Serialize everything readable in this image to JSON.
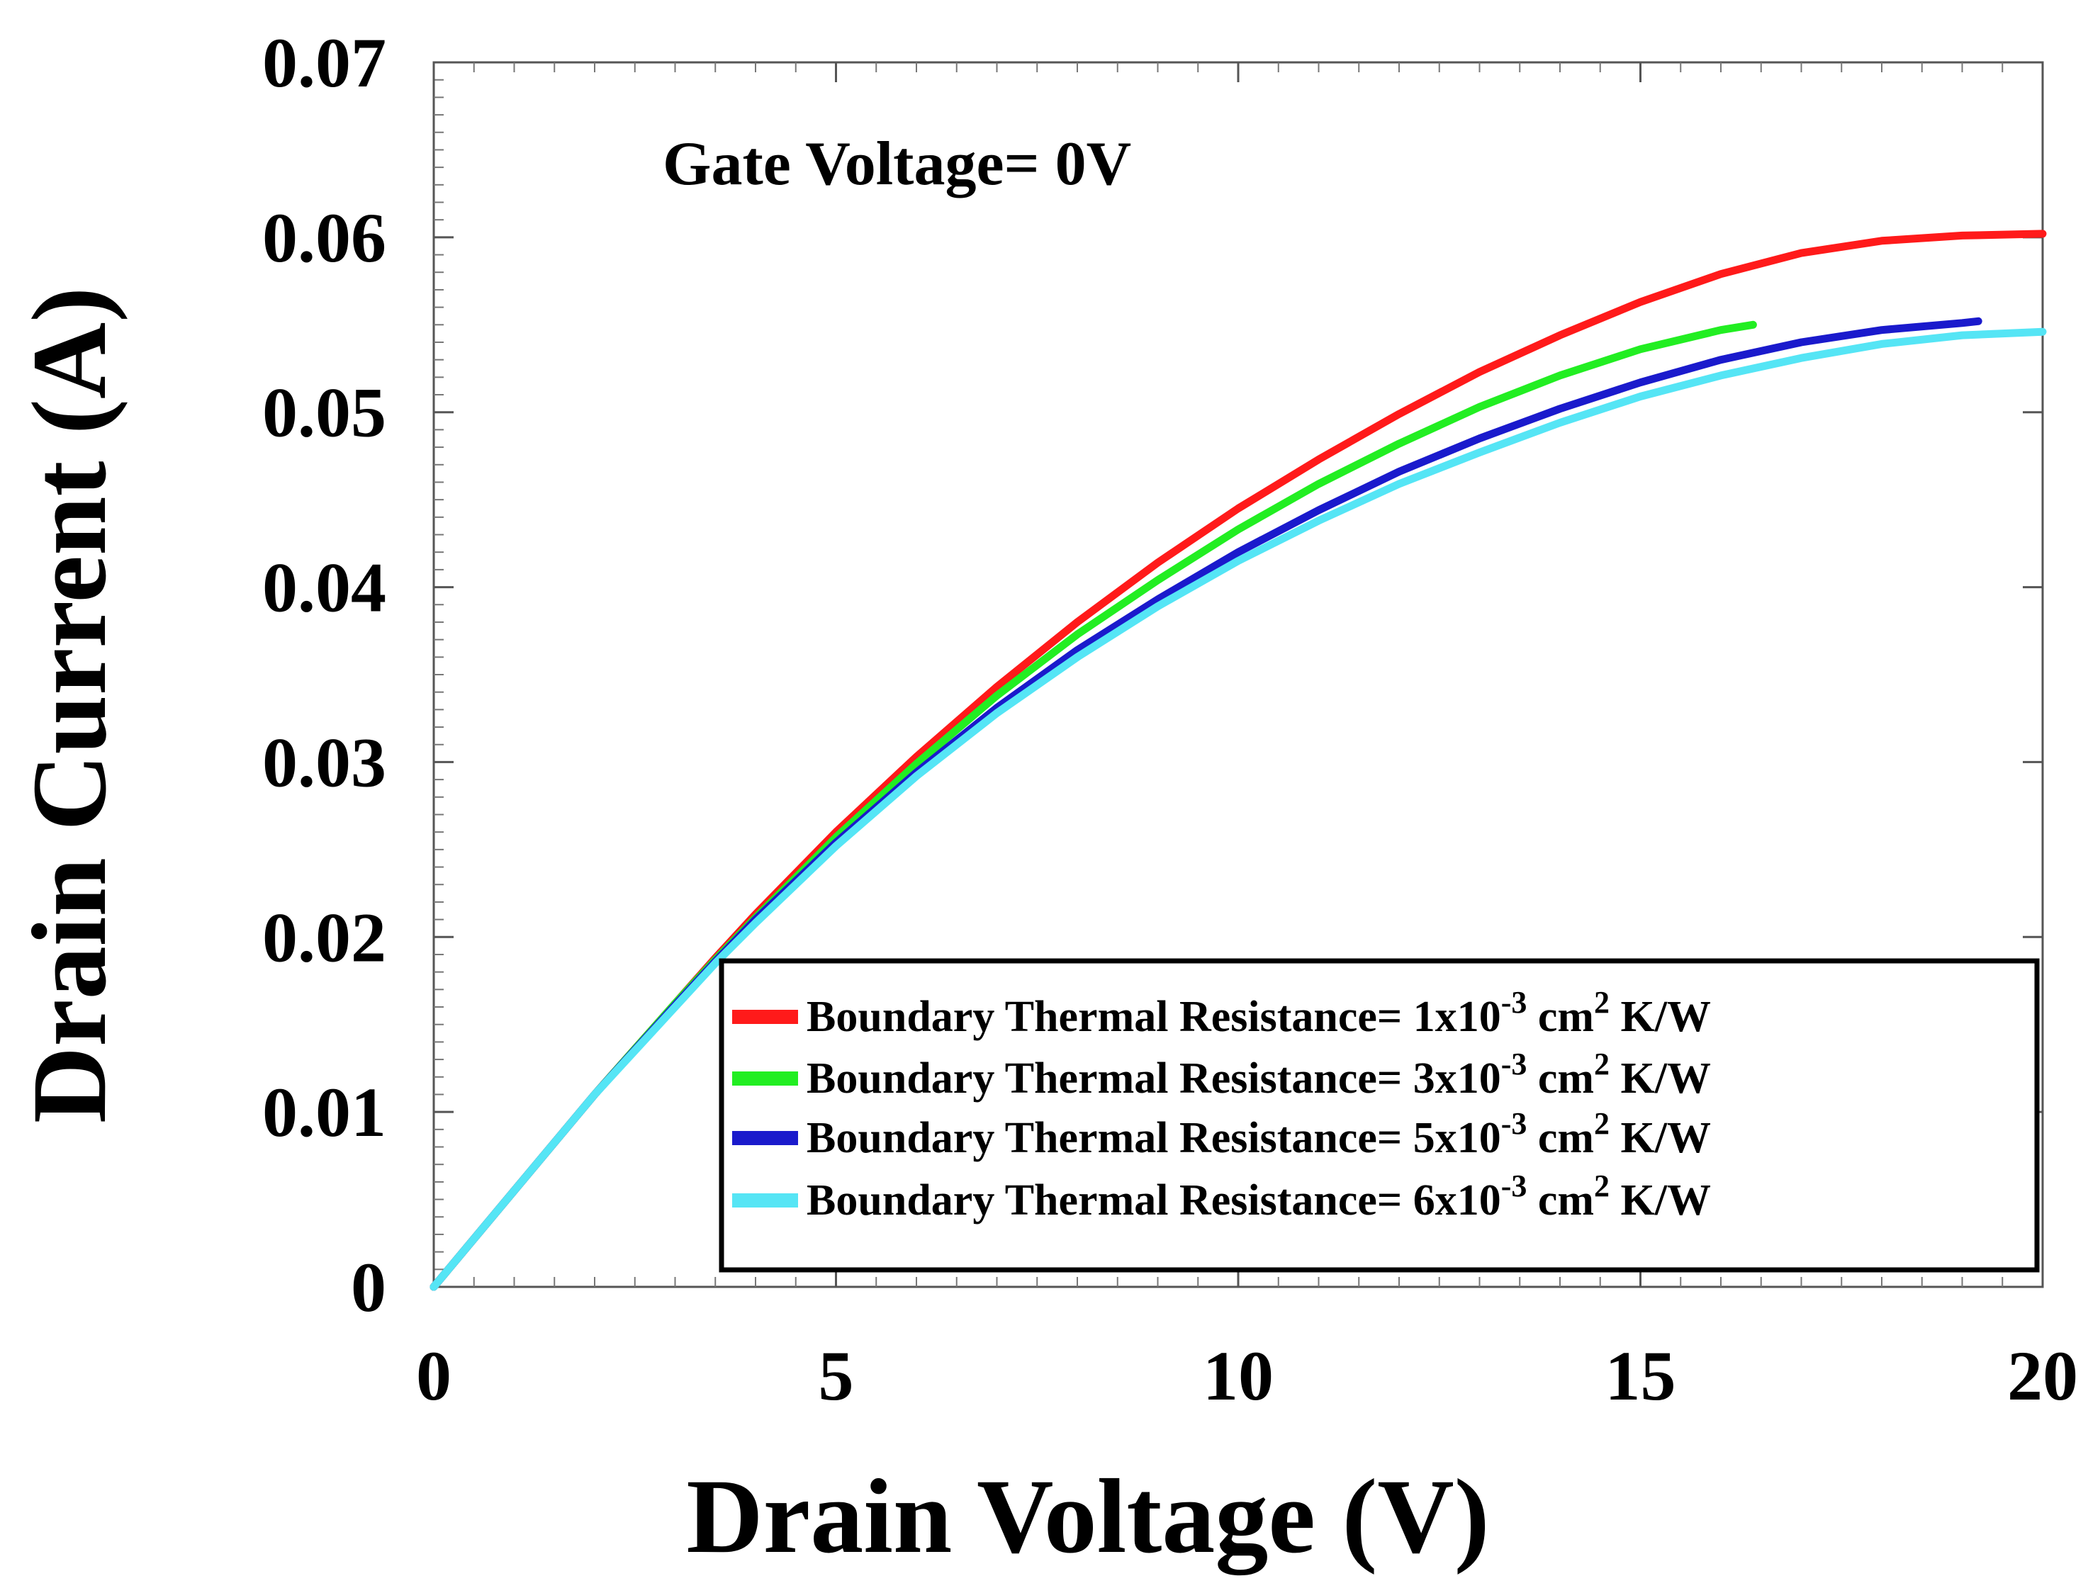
{
  "chart_data": {
    "type": "line",
    "title": "",
    "xlabel": "Drain Voltage (V)",
    "ylabel": "Drain Current (A)",
    "xlim": [
      0,
      20
    ],
    "ylim": [
      0,
      0.07
    ],
    "xticks": [
      "0",
      "5",
      "10",
      "15",
      "20"
    ],
    "yticks": [
      "0",
      "0.01",
      "0.02",
      "0.03",
      "0.04",
      "0.05",
      "0.06",
      "0.07"
    ],
    "grid": false,
    "annotation": "Gate Voltage= 0V",
    "legend_position": "bottom-right",
    "series": [
      {
        "name": "Boundary Thermal Resistance= 1x10-3 cm2 K/W",
        "legend_prefix": "Boundary Thermal Resistance= 1x10",
        "legend_exp": "-3",
        "legend_unit": "cm",
        "legend_unit_exp": "2",
        "legend_suffix": "K/W",
        "color": "#ff1a1a",
        "x": [
          0,
          1,
          2,
          3,
          3.5,
          4,
          5,
          6,
          7,
          8,
          9,
          10,
          11,
          12,
          13,
          14,
          15,
          16,
          17,
          18,
          19,
          20
        ],
        "y": [
          0,
          0.0055,
          0.011,
          0.0162,
          0.0188,
          0.0213,
          0.026,
          0.0303,
          0.0343,
          0.038,
          0.0414,
          0.0445,
          0.0473,
          0.0499,
          0.0523,
          0.0544,
          0.0563,
          0.0579,
          0.0591,
          0.0598,
          0.0601,
          0.0602
        ]
      },
      {
        "name": "Boundary Thermal Resistance= 3x10-3 cm2 K/W",
        "legend_prefix": "Boundary Thermal Resistance= 3x10",
        "legend_exp": "-3",
        "legend_unit": "cm",
        "legend_unit_exp": "2",
        "legend_suffix": "K/W",
        "color": "#22ee22",
        "x": [
          0,
          1,
          2,
          3,
          3.5,
          4,
          5,
          6,
          7,
          8,
          9,
          10,
          11,
          12,
          13,
          14,
          15,
          16,
          16.4
        ],
        "y": [
          0,
          0.0055,
          0.011,
          0.0162,
          0.0187,
          0.0211,
          0.0257,
          0.0299,
          0.0338,
          0.0373,
          0.0404,
          0.0433,
          0.0459,
          0.0482,
          0.0503,
          0.0521,
          0.0536,
          0.0547,
          0.055
        ]
      },
      {
        "name": "Boundary Thermal Resistance= 5x10-3 cm2 K/W",
        "legend_prefix": "Boundary Thermal Resistance= 5x10",
        "legend_exp": "-3",
        "legend_unit": "cm",
        "legend_unit_exp": "2",
        "legend_suffix": "K/W",
        "color": "#1a1acc",
        "x": [
          0,
          1,
          2,
          3,
          3.5,
          4,
          5,
          6,
          7,
          8,
          9,
          10,
          11,
          12,
          13,
          14,
          15,
          16,
          17,
          18,
          19,
          19.2
        ],
        "y": [
          0,
          0.0055,
          0.011,
          0.0161,
          0.0186,
          0.021,
          0.0254,
          0.0294,
          0.0331,
          0.0364,
          0.0393,
          0.042,
          0.0444,
          0.0466,
          0.0485,
          0.0502,
          0.0517,
          0.053,
          0.054,
          0.0547,
          0.0551,
          0.0552
        ]
      },
      {
        "name": "Boundary Thermal Resistance= 6x10-3 cm2 K/W",
        "legend_prefix": "Boundary Thermal Resistance= 6x10",
        "legend_exp": "-3",
        "legend_unit": "cm",
        "legend_unit_exp": "2",
        "legend_suffix": "K/W",
        "color": "#55e5f5",
        "x": [
          0,
          1,
          2,
          3,
          3.5,
          4,
          5,
          6,
          7,
          8,
          9,
          10,
          11,
          12,
          13,
          14,
          15,
          16,
          17,
          18,
          19,
          20
        ],
        "y": [
          0,
          0.0055,
          0.011,
          0.016,
          0.0185,
          0.0208,
          0.0252,
          0.0292,
          0.0328,
          0.036,
          0.0389,
          0.0415,
          0.0438,
          0.0459,
          0.0477,
          0.0494,
          0.0509,
          0.0521,
          0.0531,
          0.0539,
          0.0544,
          0.0546
        ]
      }
    ]
  }
}
